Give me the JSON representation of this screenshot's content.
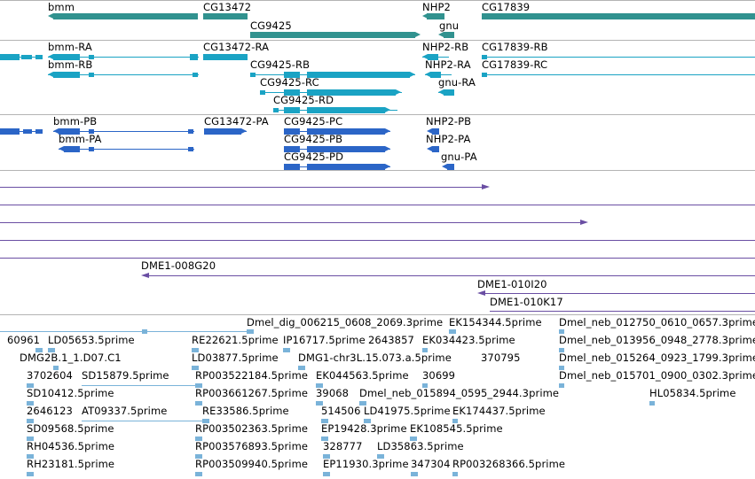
{
  "colors": {
    "gene": "#31928f",
    "transcript": "#1aa3c4",
    "protein": "#2b65c7",
    "est": "#6a4ea3",
    "feature": "#7ab3d9",
    "rule": "#b4b4b4"
  },
  "genes": {
    "bmm": "bmm",
    "CG13472": "CG13472",
    "CG9425": "CG9425",
    "NHP2": "NHP2",
    "gnu": "gnu",
    "CG17839": "CG17839"
  },
  "transcripts": {
    "bmm_RA": "bmm-RA",
    "bmm_RB": "bmm-RB",
    "CG13472_RA": "CG13472-RA",
    "CG9425_RB": "CG9425-RB",
    "CG9425_RC": "CG9425-RC",
    "CG9425_RD": "CG9425-RD",
    "NHP2_RB": "NHP2-RB",
    "NHP2_RA": "NHP2-RA",
    "gnu_RA": "gnu-RA",
    "CG17839_RB": "CG17839-RB",
    "CG17839_RC": "CG17839-RC"
  },
  "proteins": {
    "bmm_PB": "bmm-PB",
    "bmm_PA": "bmm-PA",
    "CG13472_PA": "CG13472-PA",
    "CG9425_PC": "CG9425-PC",
    "CG9425_PB": "CG9425-PB",
    "CG9425_PD": "CG9425-PD",
    "NHP2_PB": "NHP2-PB",
    "NHP2_PA": "NHP2-PA",
    "gnu_PA": "gnu-PA"
  },
  "clones": {
    "c1": "DME1-008G20",
    "c2": "DME1-010I20",
    "c3": "DME1-010K17"
  },
  "features": [
    "Dmel_dig_006215_0608_2069.3prime",
    "EK154344.5prime",
    "Dmel_neb_012750_0610_0657.3prime",
    "60961",
    "LD05653.5prime",
    "RE22621.5prime",
    "IP16717.5prime",
    "2643857",
    "EK034423.5prime",
    "Dmel_neb_013956_0948_2778.3prime",
    "DMG2B.1_1.D07.C1",
    "LD03877.5prime",
    "DMG1-chr3L.15.073.a.5prime",
    "370795",
    "Dmel_neb_015264_0923_1799.3prime",
    "3702604",
    "SD15879.5prime",
    "RP003522184.5prime",
    "EK044563.5prime",
    "30699",
    "Dmel_neb_015701_0900_0302.3prime",
    "SD10412.5prime",
    "RP003661267.5prime",
    "39068",
    "Dmel_neb_015894_0595_2944.3prime",
    "HL05834.5prime",
    "2646123",
    "AT09337.5prime",
    "RE33586.5prime",
    "514506",
    "LD41975.5prime",
    "EK174437.5prime",
    "SD09568.5prime",
    "RP003502363.5prime",
    "EP19428.3prime",
    "EK108545.5prime",
    "RH04536.5prime",
    "RP003576893.5prime",
    "328777",
    "LD35863.5prime",
    "RH23181.5prime",
    "RP003509940.5prime",
    "EP11930.3prime",
    "347304",
    "RP003268366.5prime"
  ]
}
